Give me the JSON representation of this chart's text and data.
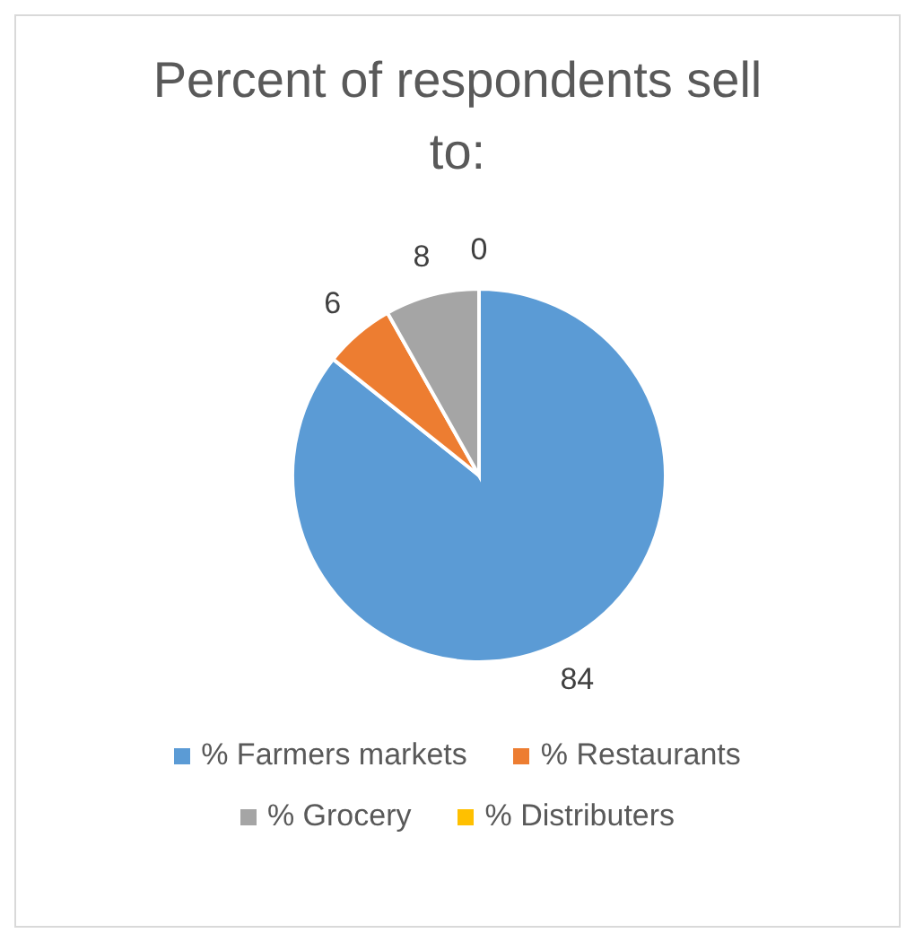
{
  "chart_data": {
    "type": "pie",
    "title": "Percent of respondents sell to:",
    "categories": [
      "% Farmers markets",
      "% Restaurants",
      "% Grocery",
      "% Distributers"
    ],
    "values": [
      84,
      6,
      8,
      0
    ],
    "colors": [
      "#5b9bd5",
      "#ed7d31",
      "#a5a5a5",
      "#ffc000"
    ],
    "value_labels": [
      "84",
      "6",
      "8",
      "0"
    ],
    "legend": "bottom"
  }
}
